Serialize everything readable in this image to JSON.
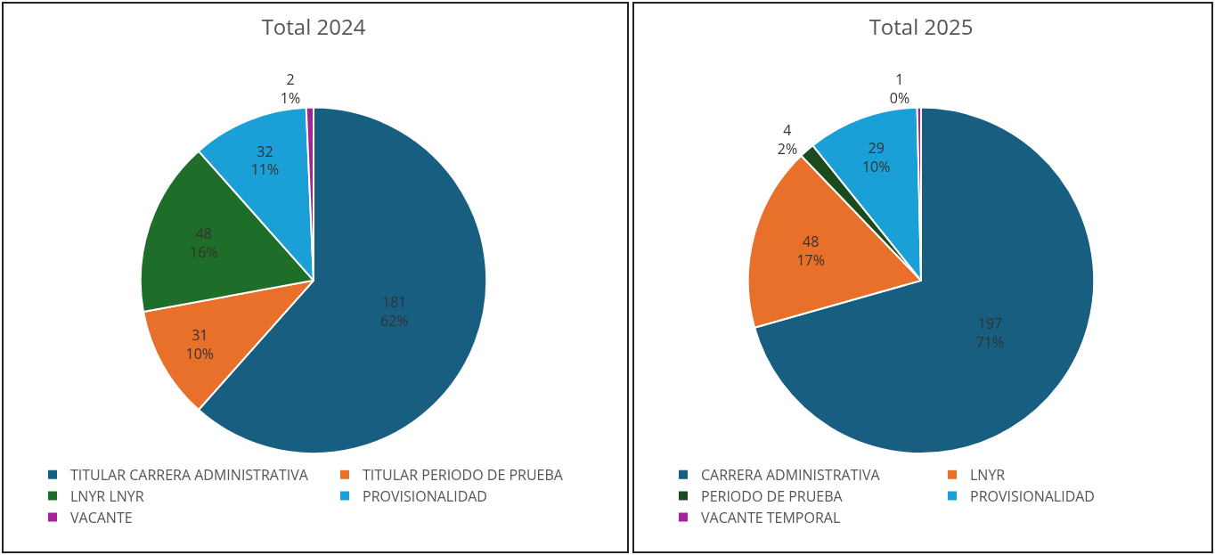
{
  "chart_data": [
    {
      "type": "pie",
      "title": "Total 2024",
      "categories": [
        "TITULAR CARRERA ADMINISTRATIVA",
        "TITULAR PERIODO DE PRUEBA",
        "LNYR LNYR",
        "PROVISIONALIDAD",
        "VACANTE"
      ],
      "values": [
        181,
        31,
        48,
        32,
        2
      ],
      "colors": [
        "#175e80",
        "#e8702a",
        "#1e6e29",
        "#1a9fd6",
        "#a3239b"
      ],
      "value_labels": [
        "181\n62%",
        "31\n10%",
        "48\n16%",
        "32\n11%",
        "2\n1%"
      ],
      "legend": "bottom"
    },
    {
      "type": "pie",
      "title": "Total 2025",
      "categories": [
        "CARRERA ADMINISTRATIVA",
        "LNYR",
        "PERIODO DE PRUEBA",
        "PROVISIONALIDAD",
        "VACANTE TEMPORAL"
      ],
      "values": [
        197,
        48,
        4,
        29,
        1
      ],
      "colors": [
        "#175e80",
        "#e8702a",
        "#1b4a1e",
        "#1a9fd6",
        "#a3239b"
      ],
      "value_labels": [
        "197\n71%",
        "48\n17%",
        "4\n2%",
        "29\n10%",
        "1\n0%"
      ],
      "legend": "bottom"
    }
  ]
}
